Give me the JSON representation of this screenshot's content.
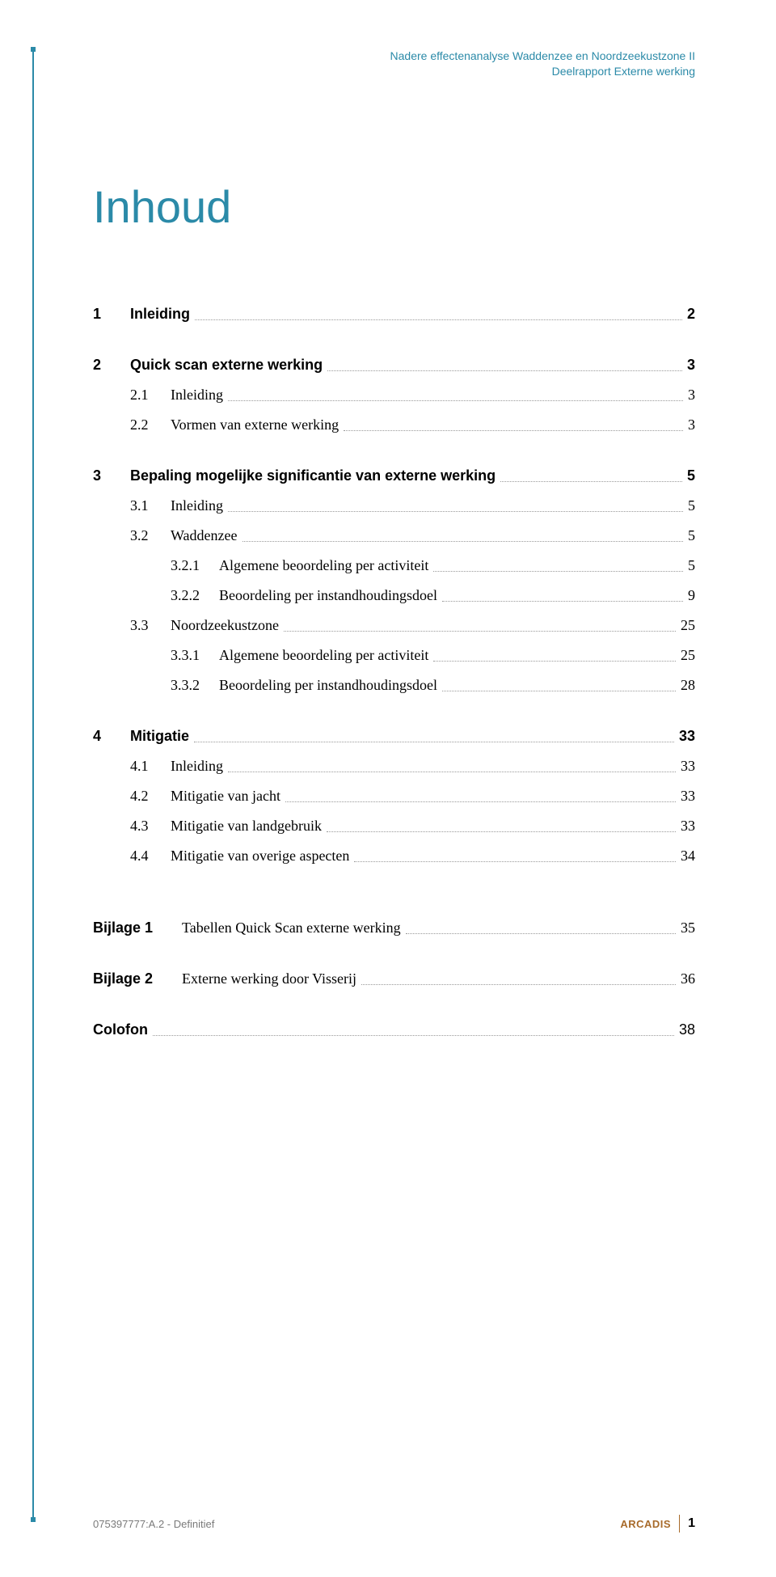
{
  "colors": {
    "accent": "#2b8aa8",
    "brand": "#a86b2b",
    "leader": "#999999",
    "footer_muted": "#7a7a7a",
    "text": "#000000",
    "background": "#ffffff"
  },
  "header": {
    "line1": "Nadere effectenanalyse Waddenzee en Noordzeekustzone II",
    "line2": "Deelrapport Externe werking"
  },
  "title": "Inhoud",
  "toc": [
    {
      "level": 1,
      "num": "1",
      "label": "Inleiding",
      "page": "2"
    },
    {
      "level": 1,
      "num": "2",
      "label": "Quick scan externe werking",
      "page": "3"
    },
    {
      "level": 2,
      "num": "2.1",
      "label": "Inleiding",
      "page": "3"
    },
    {
      "level": 2,
      "num": "2.2",
      "label": "Vormen van externe werking",
      "page": "3"
    },
    {
      "level": 1,
      "num": "3",
      "label": "Bepaling mogelijke significantie van externe werking",
      "page": "5"
    },
    {
      "level": 2,
      "num": "3.1",
      "label": "Inleiding",
      "page": "5"
    },
    {
      "level": 2,
      "num": "3.2",
      "label": "Waddenzee",
      "page": "5"
    },
    {
      "level": 3,
      "num": "3.2.1",
      "label": "Algemene beoordeling per activiteit",
      "page": "5"
    },
    {
      "level": 3,
      "num": "3.2.2",
      "label": "Beoordeling per instandhoudingsdoel",
      "page": "9"
    },
    {
      "level": 2,
      "num": "3.3",
      "label": "Noordzeekustzone",
      "page": "25"
    },
    {
      "level": 3,
      "num": "3.3.1",
      "label": "Algemene beoordeling per activiteit",
      "page": "25"
    },
    {
      "level": 3,
      "num": "3.3.2",
      "label": "Beoordeling per instandhoudingsdoel",
      "page": "28"
    },
    {
      "level": 1,
      "num": "4",
      "label": "Mitigatie",
      "page": "33"
    },
    {
      "level": 2,
      "num": "4.1",
      "label": "Inleiding",
      "page": "33"
    },
    {
      "level": 2,
      "num": "4.2",
      "label": "Mitigatie van jacht",
      "page": "33"
    },
    {
      "level": 2,
      "num": "4.3",
      "label": "Mitigatie van landgebruik",
      "page": "33"
    },
    {
      "level": 2,
      "num": "4.4",
      "label": "Mitigatie van overige aspecten",
      "page": "34"
    }
  ],
  "bijlagen": [
    {
      "num": "Bijlage 1",
      "label": "Tabellen Quick Scan externe werking",
      "page": "35"
    },
    {
      "num": "Bijlage 2",
      "label": "Externe werking door Visserij",
      "page": "36"
    }
  ],
  "colofon": {
    "label": "Colofon",
    "page": "38"
  },
  "footer": {
    "left": "075397777:A.2 - Definitief",
    "brand": "ARCADIS",
    "page": "1"
  }
}
